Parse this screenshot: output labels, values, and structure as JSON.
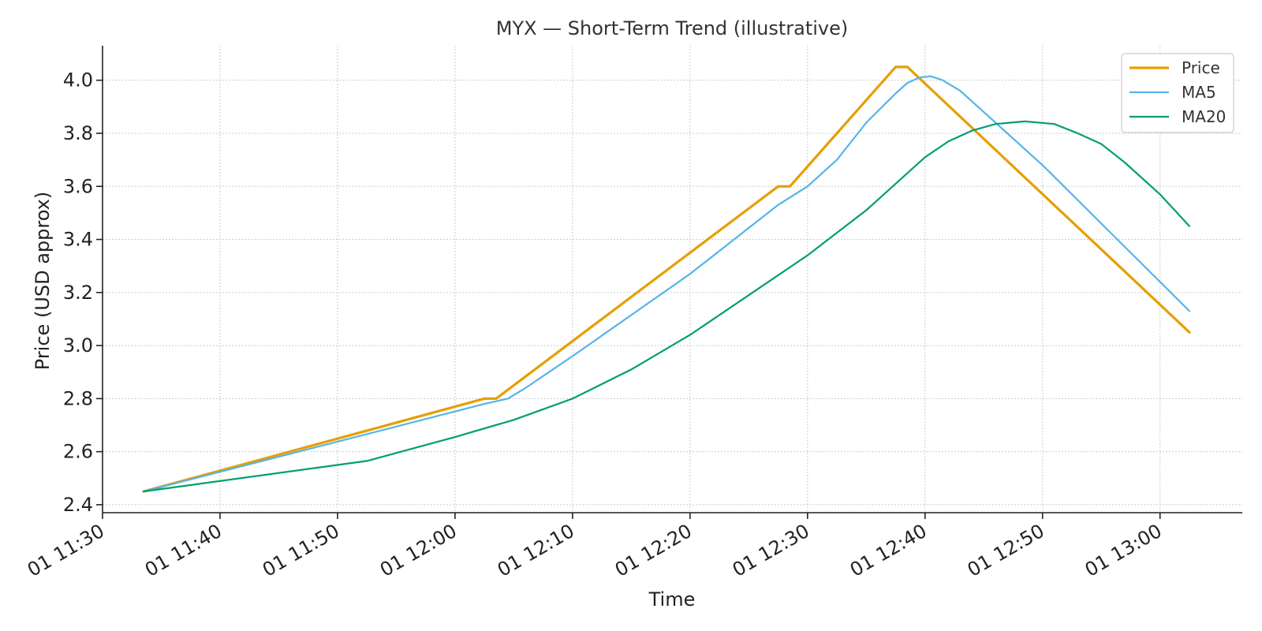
{
  "chart_data": {
    "type": "line",
    "title": "MYX — Short-Term Trend (illustrative)",
    "xlabel": "Time",
    "ylabel": "Price (USD approx)",
    "xlim": [
      "2025-01-01 11:30",
      "2025-01-01 13:07"
    ],
    "ylim": [
      2.37,
      4.13
    ],
    "xticks": [
      {
        "t": "2025-01-01 11:30",
        "label": "01 11:30"
      },
      {
        "t": "2025-01-01 11:40",
        "label": "01 11:40"
      },
      {
        "t": "2025-01-01 11:50",
        "label": "01 11:50"
      },
      {
        "t": "2025-01-01 12:00",
        "label": "01 12:00"
      },
      {
        "t": "2025-01-01 12:10",
        "label": "01 12:10"
      },
      {
        "t": "2025-01-01 12:20",
        "label": "01 12:20"
      },
      {
        "t": "2025-01-01 12:30",
        "label": "01 12:30"
      },
      {
        "t": "2025-01-01 12:40",
        "label": "01 12:40"
      },
      {
        "t": "2025-01-01 12:50",
        "label": "01 12:50"
      },
      {
        "t": "2025-01-01 13:00",
        "label": "01 13:00"
      }
    ],
    "yticks": [
      {
        "v": 2.4,
        "label": "2.4"
      },
      {
        "v": 2.6,
        "label": "2.6"
      },
      {
        "v": 2.8,
        "label": "2.8"
      },
      {
        "v": 3.0,
        "label": "3.0"
      },
      {
        "v": 3.2,
        "label": "3.2"
      },
      {
        "v": 3.4,
        "label": "3.4"
      },
      {
        "v": 3.6,
        "label": "3.6"
      },
      {
        "v": 3.8,
        "label": "3.8"
      },
      {
        "v": 4.0,
        "label": "4.0"
      }
    ],
    "grid": true,
    "legend_position": "top-right",
    "series": [
      {
        "name": "Price",
        "color": "#E69F00",
        "width": 3.2,
        "points": [
          [
            "2025-01-01 11:33:30",
            2.45
          ],
          [
            "2025-01-01 12:02:30",
            2.8
          ],
          [
            "2025-01-01 12:03:30",
            2.8
          ],
          [
            "2025-01-01 12:27:30",
            3.6
          ],
          [
            "2025-01-01 12:28:30",
            3.6
          ],
          [
            "2025-01-01 12:37:30",
            4.05
          ],
          [
            "2025-01-01 12:38:30",
            4.05
          ],
          [
            "2025-01-01 13:02:30",
            3.05
          ]
        ]
      },
      {
        "name": "MA5",
        "color": "#56B4E9",
        "width": 2.2,
        "points": [
          [
            "2025-01-01 11:33:30",
            2.45
          ],
          [
            "2025-01-01 12:02:30",
            2.78
          ],
          [
            "2025-01-01 12:04:30",
            2.8
          ],
          [
            "2025-01-01 12:06:00",
            2.84
          ],
          [
            "2025-01-01 12:08:00",
            2.9
          ],
          [
            "2025-01-01 12:10:00",
            2.96
          ],
          [
            "2025-01-01 12:20:00",
            3.27
          ],
          [
            "2025-01-01 12:27:30",
            3.53
          ],
          [
            "2025-01-01 12:30:00",
            3.6
          ],
          [
            "2025-01-01 12:32:30",
            3.7
          ],
          [
            "2025-01-01 12:35:00",
            3.84
          ],
          [
            "2025-01-01 12:37:30",
            3.95
          ],
          [
            "2025-01-01 12:38:30",
            3.99
          ],
          [
            "2025-01-01 12:39:30",
            4.01
          ],
          [
            "2025-01-01 12:40:30",
            4.015
          ],
          [
            "2025-01-01 12:41:30",
            4.0
          ],
          [
            "2025-01-01 12:43:00",
            3.96
          ],
          [
            "2025-01-01 12:45:00",
            3.88
          ],
          [
            "2025-01-01 12:50:00",
            3.68
          ],
          [
            "2025-01-01 13:02:30",
            3.13
          ]
        ]
      },
      {
        "name": "MA20",
        "color": "#009E73",
        "width": 2.2,
        "points": [
          [
            "2025-01-01 11:33:30",
            2.45
          ],
          [
            "2025-01-01 11:52:30",
            2.565
          ],
          [
            "2025-01-01 12:00:00",
            2.655
          ],
          [
            "2025-01-01 12:05:00",
            2.72
          ],
          [
            "2025-01-01 12:10:00",
            2.8
          ],
          [
            "2025-01-01 12:15:00",
            2.91
          ],
          [
            "2025-01-01 12:20:00",
            3.04
          ],
          [
            "2025-01-01 12:25:00",
            3.19
          ],
          [
            "2025-01-01 12:30:00",
            3.34
          ],
          [
            "2025-01-01 12:35:00",
            3.51
          ],
          [
            "2025-01-01 12:38:00",
            3.63
          ],
          [
            "2025-01-01 12:40:00",
            3.71
          ],
          [
            "2025-01-01 12:42:00",
            3.77
          ],
          [
            "2025-01-01 12:44:00",
            3.81
          ],
          [
            "2025-01-01 12:46:00",
            3.835
          ],
          [
            "2025-01-01 12:48:30",
            3.845
          ],
          [
            "2025-01-01 12:51:00",
            3.835
          ],
          [
            "2025-01-01 12:53:00",
            3.8
          ],
          [
            "2025-01-01 12:55:00",
            3.76
          ],
          [
            "2025-01-01 12:57:00",
            3.69
          ],
          [
            "2025-01-01 13:00:00",
            3.57
          ],
          [
            "2025-01-01 13:02:30",
            3.45
          ]
        ]
      }
    ]
  }
}
